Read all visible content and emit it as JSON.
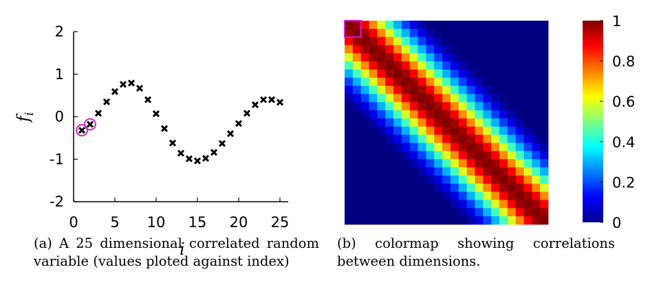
{
  "chart_data": [
    {
      "type": "scatter",
      "marker": "x",
      "marker_color": "#000000",
      "x": [
        1,
        2,
        3,
        4,
        5,
        6,
        7,
        8,
        9,
        10,
        11,
        12,
        13,
        14,
        15,
        16,
        17,
        18,
        19,
        20,
        21,
        22,
        23,
        24,
        25
      ],
      "y": [
        -0.32,
        -0.18,
        0.08,
        0.35,
        0.59,
        0.76,
        0.79,
        0.67,
        0.4,
        0.07,
        -0.28,
        -0.62,
        -0.86,
        -0.99,
        -1.04,
        -0.98,
        -0.84,
        -0.63,
        -0.4,
        -0.16,
        0.08,
        0.28,
        0.4,
        0.4,
        0.34
      ],
      "highlighted_x": [
        1,
        2
      ],
      "highlight_color": "#d020c8",
      "xlabel": "i",
      "ylabel": "f",
      "ylabel_subscript": "i",
      "xlim": [
        0,
        26
      ],
      "ylim": [
        -2,
        2
      ],
      "xticks": [
        "0",
        "5",
        "10",
        "15",
        "20",
        "25"
      ],
      "yticks": [
        "2",
        "1",
        "0",
        "-1",
        "-2"
      ],
      "caption": "(a) A 25 dimensional correlated random variable (values ploted against index)"
    },
    {
      "type": "heatmap",
      "size": 25,
      "colormap": "jet",
      "diagonal_values": [
        1.0,
        0.97,
        0.88,
        0.74,
        0.59,
        0.44,
        0.3,
        0.19,
        0.1,
        0.04,
        0.0
      ],
      "highlighted_cell": [
        1,
        1
      ],
      "highlight_color": "#d020c8",
      "colorbar": {
        "min": 0,
        "max": 1,
        "ticks": [
          "1",
          "0.8",
          "0.6",
          "0.4",
          "0.2",
          "0"
        ]
      },
      "caption": "(b) colormap showing correlations between dimensions."
    }
  ]
}
